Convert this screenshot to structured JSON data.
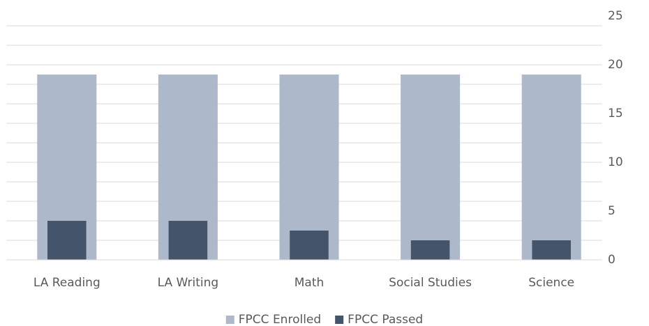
{
  "chart_data": {
    "type": "bar",
    "categories": [
      "LA Reading",
      "LA Writing",
      "Math",
      "Social Studies",
      "Science"
    ],
    "series": [
      {
        "name": "FPCC Enrolled",
        "color": "#adb9ca",
        "values": [
          19,
          19,
          19,
          19,
          19
        ]
      },
      {
        "name": "FPCC Passed",
        "color": "#44546a",
        "values": [
          4,
          4,
          3,
          2,
          2
        ]
      }
    ],
    "ylim": [
      0,
      25
    ],
    "yticks": [
      0,
      5,
      10,
      15,
      20,
      25
    ],
    "gridlines": [
      0,
      2,
      4,
      6,
      8,
      10,
      12,
      14,
      16,
      18,
      20,
      22,
      24
    ],
    "grid": true,
    "y_axis_side": "right",
    "legend": "bottom",
    "overlap": true
  }
}
